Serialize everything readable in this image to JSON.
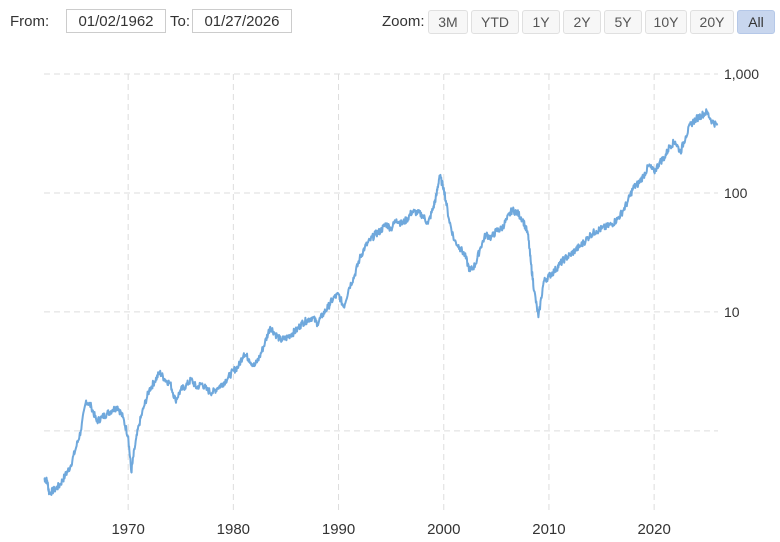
{
  "range": {
    "from_label": "From:",
    "from_value": "01/02/1962",
    "to_label": "To:",
    "to_value": "01/27/2026"
  },
  "zoom": {
    "label": "Zoom:",
    "buttons": [
      "3M",
      "YTD",
      "1Y",
      "2Y",
      "5Y",
      "10Y",
      "20Y",
      "All"
    ],
    "active": "All"
  },
  "chart_data": {
    "type": "line",
    "title": "",
    "xlabel": "",
    "ylabel": "",
    "y_scale": "log",
    "ylim": [
      0.2,
      1000
    ],
    "xlim": [
      1962.0,
      2026.07
    ],
    "x_ticks": [
      1970,
      1980,
      1990,
      2000,
      2010,
      2020
    ],
    "y_ticks": [
      1,
      10,
      100,
      1000
    ],
    "y_tick_labels": [
      "",
      "10",
      "100",
      "1,000"
    ],
    "grid": true,
    "legend": "none",
    "line_color": "#6fa8dc",
    "series": [
      {
        "x": [
          1962.0,
          1962.3,
          1962.5,
          1963.0,
          1963.5,
          1964.0,
          1964.5,
          1965.0,
          1965.5,
          1966.0,
          1966.5,
          1967.0,
          1967.5,
          1968.0,
          1968.5,
          1969.0,
          1969.5,
          1970.0,
          1970.3,
          1970.6,
          1971.0,
          1971.5,
          1972.0,
          1972.5,
          1973.0,
          1973.5,
          1974.0,
          1974.5,
          1975.0,
          1975.5,
          1976.0,
          1976.5,
          1977.0,
          1977.5,
          1978.0,
          1978.5,
          1979.0,
          1979.5,
          1980.0,
          1980.5,
          1981.0,
          1981.5,
          1982.0,
          1982.5,
          1983.0,
          1983.5,
          1984.0,
          1984.5,
          1985.0,
          1985.5,
          1986.0,
          1986.5,
          1987.0,
          1987.5,
          1988.0,
          1988.5,
          1989.0,
          1989.5,
          1990.0,
          1990.5,
          1991.0,
          1991.5,
          1992.0,
          1992.5,
          1993.0,
          1993.5,
          1994.0,
          1994.5,
          1995.0,
          1995.5,
          1996.0,
          1996.5,
          1997.0,
          1997.5,
          1998.0,
          1998.5,
          1999.0,
          1999.3,
          1999.6,
          2000.0,
          2000.5,
          2001.0,
          2001.5,
          2002.0,
          2002.5,
          2003.0,
          2003.5,
          2004.0,
          2004.5,
          2005.0,
          2005.5,
          2006.0,
          2006.5,
          2007.0,
          2007.5,
          2008.0,
          2008.3,
          2008.6,
          2009.0,
          2009.5,
          2010.0,
          2010.5,
          2011.0,
          2011.5,
          2012.0,
          2012.5,
          2013.0,
          2013.5,
          2014.0,
          2014.5,
          2015.0,
          2015.5,
          2016.0,
          2016.5,
          2017.0,
          2017.5,
          2018.0,
          2018.5,
          2019.0,
          2019.5,
          2020.0,
          2020.5,
          2021.0,
          2021.5,
          2022.0,
          2022.5,
          2023.0,
          2023.5,
          2024.0,
          2024.5,
          2025.0,
          2025.5,
          2026.0
        ],
        "y": [
          0.4,
          0.38,
          0.3,
          0.32,
          0.35,
          0.42,
          0.5,
          0.7,
          1.0,
          1.8,
          1.6,
          1.2,
          1.3,
          1.4,
          1.5,
          1.6,
          1.3,
          0.9,
          0.45,
          0.7,
          1.1,
          1.6,
          2.2,
          2.6,
          3.1,
          2.7,
          2.5,
          1.8,
          2.2,
          2.4,
          2.7,
          2.3,
          2.5,
          2.2,
          2.1,
          2.3,
          2.5,
          2.8,
          3.2,
          3.5,
          4.5,
          4.0,
          3.5,
          4.2,
          5.5,
          7.5,
          6.5,
          5.8,
          6.0,
          6.5,
          7.0,
          8.0,
          8.5,
          9.0,
          8.0,
          9.5,
          11.0,
          13.0,
          14.0,
          11.0,
          16.0,
          20.0,
          28.0,
          35.0,
          40.0,
          45.0,
          48.0,
          55.0,
          50.0,
          60.0,
          55.0,
          60.0,
          70.0,
          68.0,
          65.0,
          55.0,
          75.0,
          95.0,
          140.0,
          110.0,
          60.0,
          40.0,
          35.0,
          30.0,
          22.0,
          25.0,
          35.0,
          45.0,
          42.0,
          48.0,
          50.0,
          60.0,
          72.0,
          68.0,
          60.0,
          45.0,
          25.0,
          15.0,
          9.0,
          18.0,
          20.0,
          22.0,
          25.0,
          28.0,
          30.0,
          33.0,
          36.0,
          40.0,
          45.0,
          48.0,
          50.0,
          52.0,
          55.0,
          60.0,
          70.0,
          85.0,
          110.0,
          120.0,
          140.0,
          170.0,
          150.0,
          180.0,
          200.0,
          250.0,
          270.0,
          220.0,
          300.0,
          380.0,
          420.0,
          450.0,
          480.0,
          400.0,
          370.0
        ]
      }
    ]
  }
}
